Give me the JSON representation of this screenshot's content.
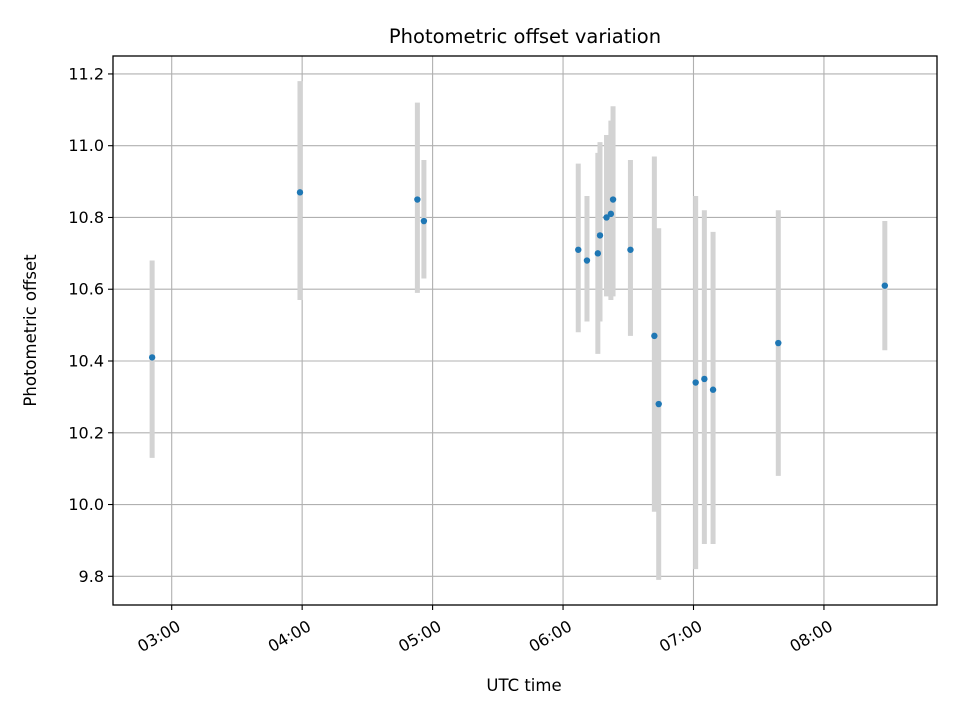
{
  "chart_data": {
    "type": "scatter",
    "title": "Photometric offset variation",
    "xlabel": "UTC time",
    "ylabel": "Photometric offset",
    "x_unit": "HH:MM UTC",
    "xlim": [
      "02:33",
      "08:52"
    ],
    "ylim": [
      9.72,
      11.25
    ],
    "x_ticks": [
      "03:00",
      "04:00",
      "05:00",
      "06:00",
      "07:00",
      "08:00"
    ],
    "y_ticks": [
      "9.8",
      "10.0",
      "10.2",
      "10.4",
      "10.6",
      "10.8",
      "11.0",
      "11.2"
    ],
    "grid": true,
    "colors": {
      "point": "#1f77b4",
      "errorbar": "#d3d3d3",
      "grid": "#b0b0b0"
    },
    "points": [
      {
        "x": "02:51",
        "y": 10.41,
        "ylow": 10.13,
        "yhigh": 10.68
      },
      {
        "x": "03:59",
        "y": 10.87,
        "ylow": 10.57,
        "yhigh": 11.18
      },
      {
        "x": "04:53",
        "y": 10.85,
        "ylow": 10.59,
        "yhigh": 11.12
      },
      {
        "x": "04:56",
        "y": 10.79,
        "ylow": 10.63,
        "yhigh": 10.96
      },
      {
        "x": "06:07",
        "y": 10.71,
        "ylow": 10.48,
        "yhigh": 10.95
      },
      {
        "x": "06:11",
        "y": 10.68,
        "ylow": 10.51,
        "yhigh": 10.86
      },
      {
        "x": "06:16",
        "y": 10.7,
        "ylow": 10.42,
        "yhigh": 10.98
      },
      {
        "x": "06:17",
        "y": 10.75,
        "ylow": 10.51,
        "yhigh": 11.01
      },
      {
        "x": "06:20",
        "y": 10.8,
        "ylow": 10.58,
        "yhigh": 11.03
      },
      {
        "x": "06:22",
        "y": 10.81,
        "ylow": 10.57,
        "yhigh": 11.07
      },
      {
        "x": "06:23",
        "y": 10.85,
        "ylow": 10.58,
        "yhigh": 11.11
      },
      {
        "x": "06:31",
        "y": 10.71,
        "ylow": 10.47,
        "yhigh": 10.96
      },
      {
        "x": "06:42",
        "y": 10.47,
        "ylow": 9.98,
        "yhigh": 10.97
      },
      {
        "x": "06:44",
        "y": 10.28,
        "ylow": 9.79,
        "yhigh": 10.77
      },
      {
        "x": "07:01",
        "y": 10.34,
        "ylow": 9.82,
        "yhigh": 10.86
      },
      {
        "x": "07:05",
        "y": 10.35,
        "ylow": 9.89,
        "yhigh": 10.82
      },
      {
        "x": "07:09",
        "y": 10.32,
        "ylow": 9.89,
        "yhigh": 10.76
      },
      {
        "x": "07:39",
        "y": 10.45,
        "ylow": 10.08,
        "yhigh": 10.82
      },
      {
        "x": "08:28",
        "y": 10.61,
        "ylow": 10.43,
        "yhigh": 10.79
      }
    ]
  }
}
